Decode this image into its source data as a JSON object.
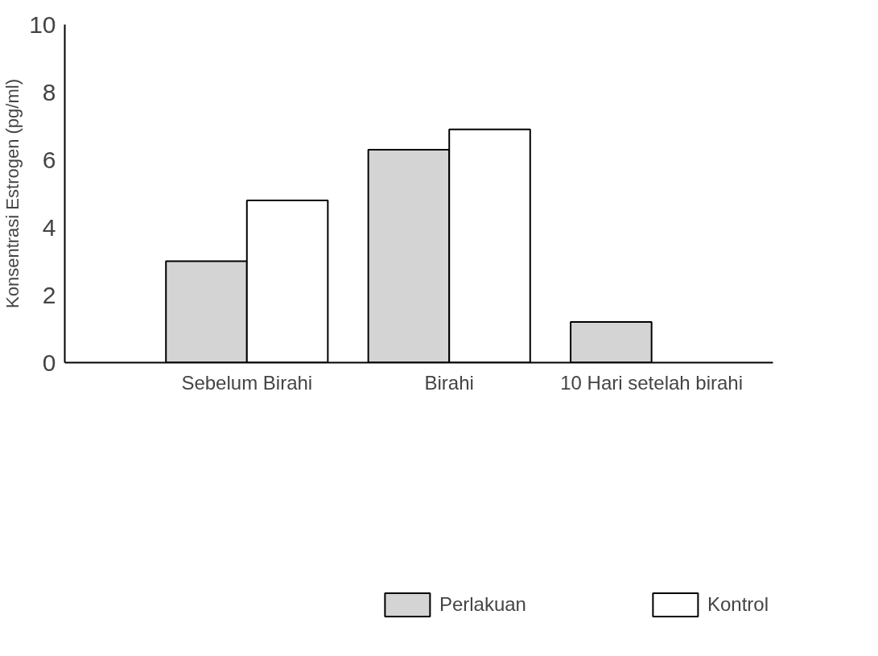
{
  "chart_data": {
    "type": "bar",
    "ylabel": "Konsentrasi Estrogen (pg/ml)",
    "categories": [
      "Sebelum Birahi",
      "Birahi",
      "10 Hari setelah birahi"
    ],
    "series": [
      {
        "name": "Perlakuan",
        "color": "#d4d4d4",
        "values": [
          3.0,
          6.3,
          1.2
        ]
      },
      {
        "name": "Kontrol",
        "color": "#ffffff",
        "values": [
          4.8,
          6.9,
          null
        ]
      }
    ],
    "ylim": [
      0,
      10
    ],
    "yticks": [
      0,
      2,
      4,
      6,
      8,
      10
    ],
    "grid": false,
    "legend": "bottom"
  }
}
